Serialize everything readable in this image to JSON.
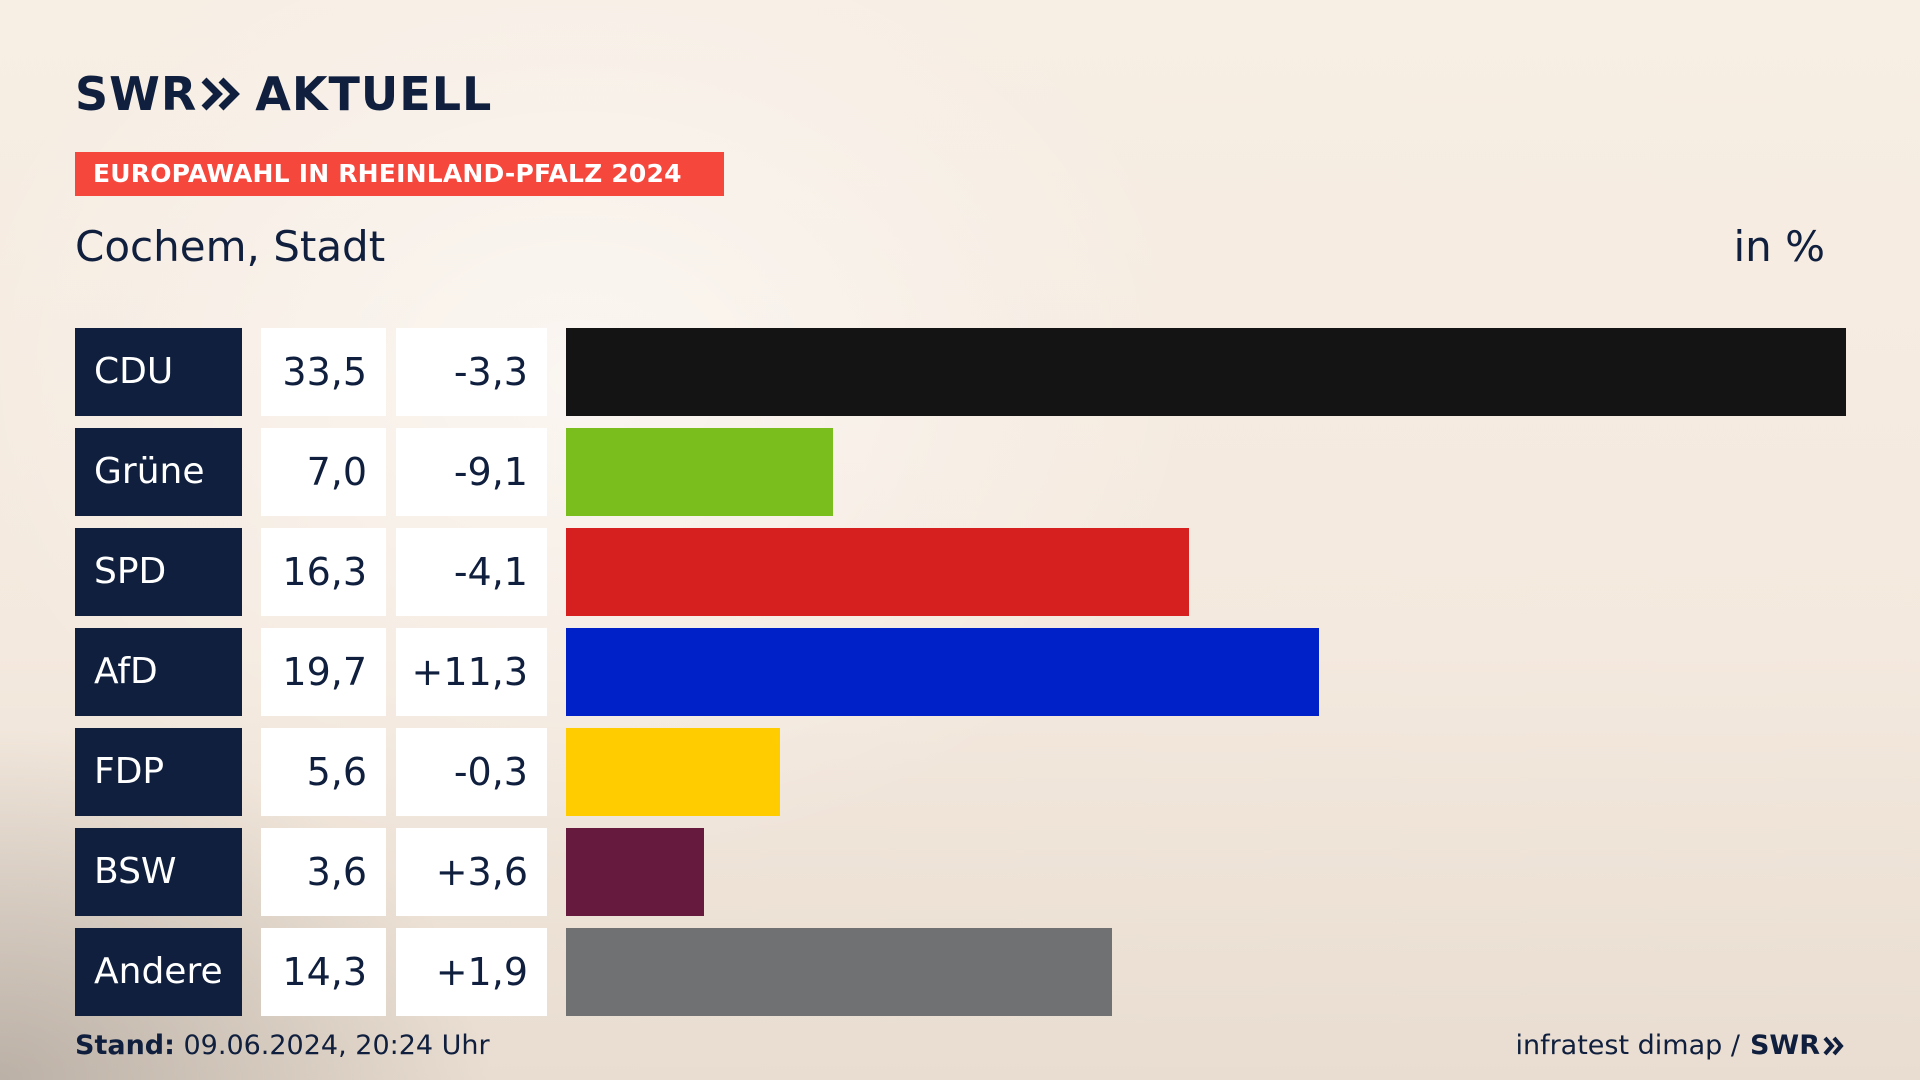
{
  "header": {
    "logo_left": "SWR",
    "logo_right": "AKTUELL",
    "badge": "EUROPAWAHL IN RHEINLAND-PFALZ 2024",
    "subtitle": "Cochem, Stadt",
    "unit": "in %"
  },
  "chart_data": {
    "type": "bar",
    "orientation": "horizontal",
    "categories": [
      "CDU",
      "Grüne",
      "SPD",
      "AfD",
      "FDP",
      "BSW",
      "Andere"
    ],
    "values": [
      33.5,
      7.0,
      16.3,
      19.7,
      5.6,
      3.6,
      14.3
    ],
    "value_labels": [
      "33,5",
      "7,0",
      "16,3",
      "19,7",
      "5,6",
      "3,6",
      "14,3"
    ],
    "diff_labels": [
      "-3,3",
      "-9,1",
      "-4,1",
      "+11,3",
      "-0,3",
      "+3,6",
      "+1,9"
    ],
    "diffs": [
      -3.3,
      -9.1,
      -4.1,
      11.3,
      -0.3,
      3.6,
      1.9
    ],
    "colors": [
      "#141414",
      "#79be1c",
      "#d61f1f",
      "#0020c8",
      "#ffcc00",
      "#661a3d",
      "#707172"
    ],
    "xlim": [
      0,
      33.5
    ],
    "grid": false,
    "legend": "none"
  },
  "footer": {
    "stand_label": "Stand:",
    "stand_value": " 09.06.2024, 20:24 Uhr",
    "source": "infratest dimap /",
    "source_logo": "SWR"
  }
}
